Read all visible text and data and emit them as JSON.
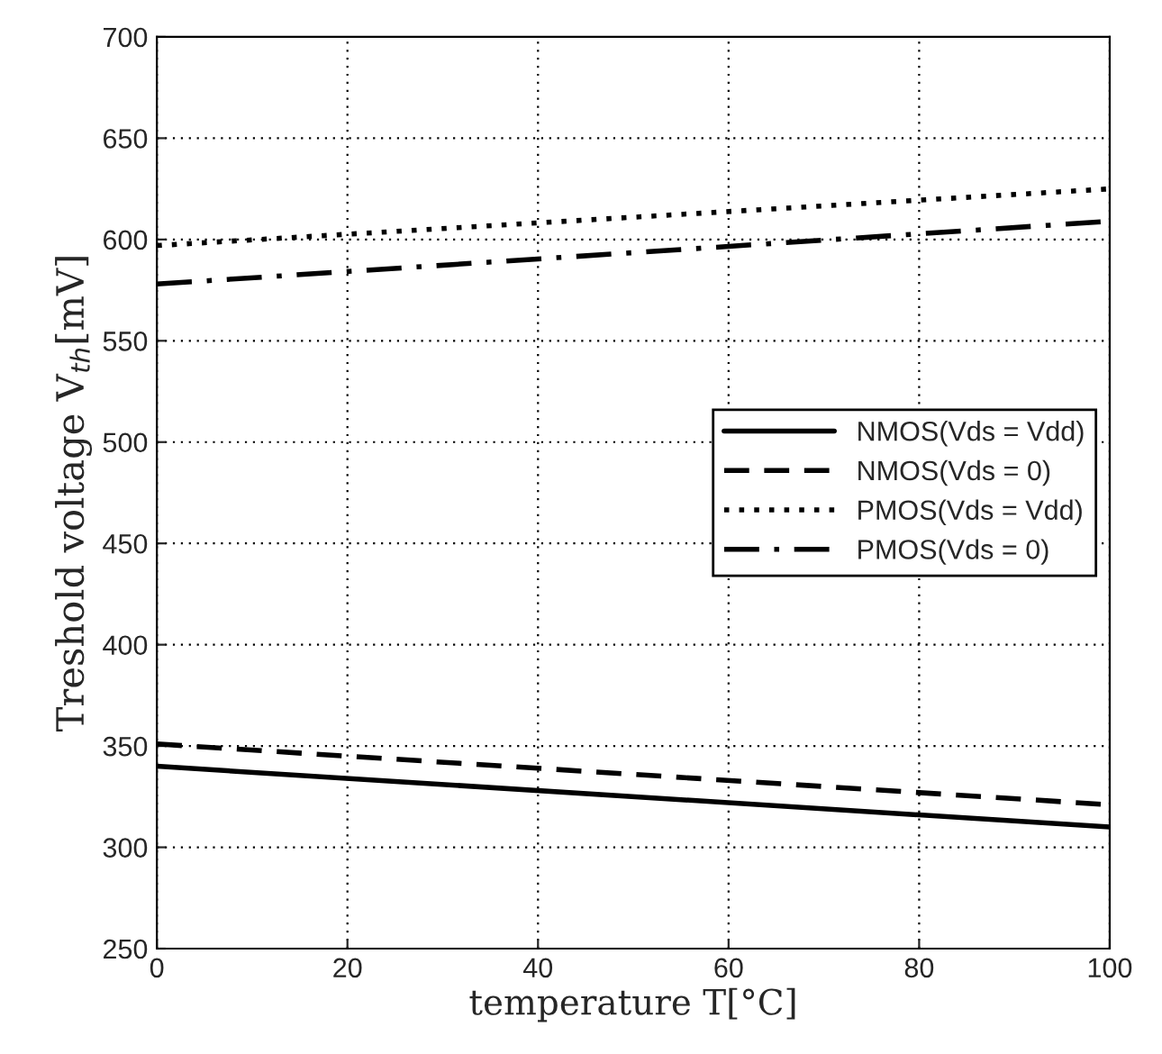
{
  "chart_data": {
    "type": "line",
    "xlabel": "temperature T[°C]",
    "ylabel": "Treshold voltage V$_{th}$[mV]",
    "x": [
      0,
      100
    ],
    "series": [
      {
        "name": "NMOS(Vds = Vdd)",
        "color": "#000000",
        "values": [
          340,
          310
        ],
        "line_style": "solid"
      },
      {
        "name": "NMOS(Vds = 0)",
        "color": "#000000",
        "values": [
          351,
          321
        ],
        "line_style": "dashed"
      },
      {
        "name": "PMOS(Vds = Vdd)",
        "color": "#000000",
        "values": [
          597,
          625
        ],
        "line_style": "dotted"
      },
      {
        "name": "PMOS(Vds = 0)",
        "color": "#000000",
        "values": [
          578,
          609
        ],
        "line_style": "dashdot"
      }
    ],
    "xlim": [
      0,
      100
    ],
    "xticks": [
      0,
      20,
      40,
      60,
      80,
      100
    ],
    "ylim": [
      250,
      700
    ],
    "yticks": [
      250,
      300,
      350,
      400,
      450,
      500,
      550,
      600,
      650,
      700
    ],
    "grid": true,
    "legend": "center right",
    "marker": "none"
  }
}
